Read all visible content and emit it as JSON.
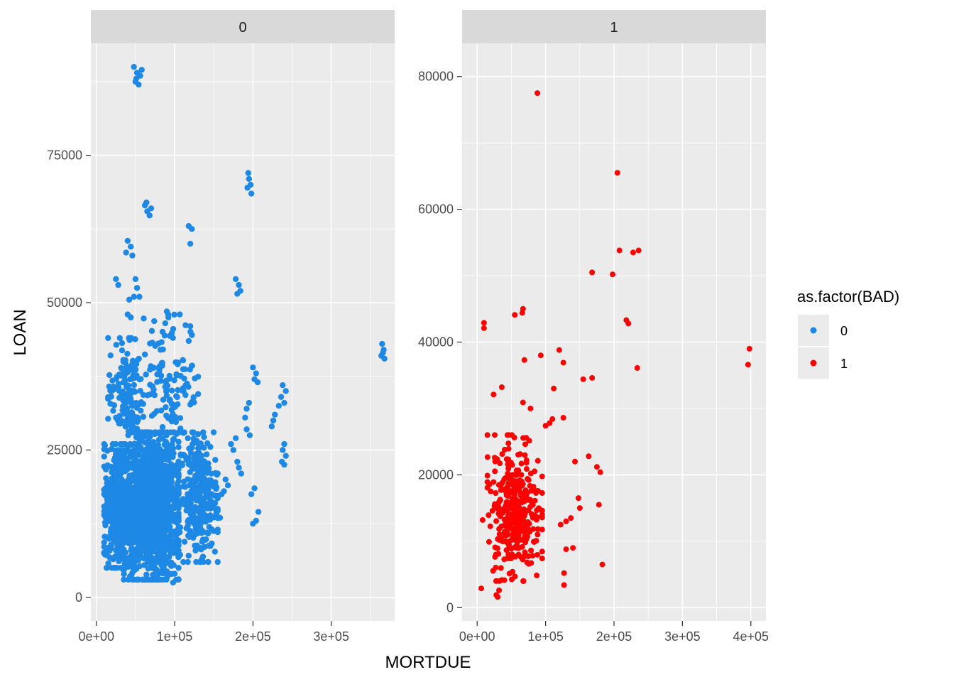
{
  "chart_data": {
    "type": "scatter",
    "xlabel": "MORTDUE",
    "ylabel": "LOAN",
    "grid": true,
    "legend": {
      "title": "as.factor(BAD)",
      "placement": "right",
      "entries": [
        {
          "label": "0",
          "color": "#1E88E5"
        },
        {
          "label": "1",
          "color": "#FF0000"
        }
      ]
    },
    "facets": [
      {
        "strip_label": "0",
        "color": "#1E88E5",
        "xlim": [
          -7000,
          381000
        ],
        "ylim": [
          -4000,
          94000
        ],
        "x_ticks": [
          0,
          100000,
          200000,
          300000
        ],
        "x_tick_labels": [
          "0e+00",
          "1e+05",
          "2e+05",
          "3e+05"
        ],
        "y_ticks": [
          0,
          25000,
          50000,
          75000
        ],
        "y_tick_labels": [
          "0",
          "25000",
          "50000",
          "75000"
        ],
        "clusters": [
          {
            "x": [
              35000,
              105000
            ],
            "y": [
              3000,
              28000
            ],
            "n": 1400
          },
          {
            "x": [
              10000,
              50000
            ],
            "y": [
              5000,
              26000
            ],
            "n": 500
          },
          {
            "x": [
              105000,
              155000
            ],
            "y": [
              6000,
              28000
            ],
            "n": 300
          },
          {
            "x": [
              15000,
              60000
            ],
            "y": [
              25000,
              44000
            ],
            "n": 150
          },
          {
            "x": [
              60000,
              130000
            ],
            "y": [
              26000,
              48000
            ],
            "n": 120
          }
        ],
        "points": [
          [
            48000,
            90000
          ],
          [
            52000,
            89000
          ],
          [
            56000,
            88500
          ],
          [
            50000,
            87500
          ],
          [
            54000,
            87000
          ],
          [
            58000,
            89500
          ],
          [
            51000,
            88000
          ],
          [
            195000,
            71000
          ],
          [
            197000,
            70000
          ],
          [
            193000,
            69500
          ],
          [
            198000,
            68500
          ],
          [
            194000,
            72000
          ],
          [
            62000,
            66500
          ],
          [
            65000,
            65500
          ],
          [
            68000,
            64800
          ],
          [
            64000,
            67000
          ],
          [
            70000,
            66000
          ],
          [
            118000,
            63000
          ],
          [
            122000,
            62500
          ],
          [
            120000,
            60000
          ],
          [
            40000,
            60500
          ],
          [
            44000,
            59500
          ],
          [
            38000,
            58500
          ],
          [
            46000,
            58000
          ],
          [
            25000,
            54000
          ],
          [
            28000,
            53000
          ],
          [
            50000,
            54000
          ],
          [
            52000,
            52500
          ],
          [
            42000,
            50500
          ],
          [
            48000,
            51000
          ],
          [
            55000,
            51000
          ],
          [
            40000,
            48000
          ],
          [
            44000,
            47500
          ],
          [
            178000,
            54000
          ],
          [
            182000,
            53000
          ],
          [
            180000,
            51500
          ],
          [
            184000,
            52000
          ],
          [
            90000,
            48500
          ],
          [
            92000,
            47500
          ],
          [
            88000,
            46500
          ],
          [
            120000,
            46000
          ],
          [
            122000,
            44500
          ],
          [
            118000,
            43500
          ],
          [
            365000,
            43000
          ],
          [
            367000,
            42000
          ],
          [
            364000,
            41000
          ],
          [
            368000,
            40500
          ],
          [
            366000,
            41500
          ],
          [
            200000,
            39000
          ],
          [
            204000,
            38000
          ],
          [
            202000,
            37000
          ],
          [
            206000,
            36500
          ],
          [
            238000,
            36000
          ],
          [
            242000,
            35000
          ],
          [
            236000,
            34000
          ],
          [
            240000,
            33000
          ],
          [
            233000,
            32500
          ],
          [
            228000,
            31000
          ],
          [
            226000,
            30000
          ],
          [
            224000,
            29000
          ],
          [
            195000,
            33000
          ],
          [
            192000,
            32000
          ],
          [
            190000,
            30500
          ],
          [
            172000,
            26000
          ],
          [
            175000,
            25000
          ],
          [
            178000,
            27000
          ],
          [
            192000,
            28500
          ],
          [
            196000,
            27500
          ],
          [
            240000,
            26000
          ],
          [
            238000,
            25000
          ],
          [
            242000,
            24000
          ],
          [
            237000,
            23000
          ],
          [
            240000,
            22500
          ],
          [
            180000,
            23000
          ],
          [
            182000,
            22000
          ],
          [
            185000,
            21000
          ],
          [
            165000,
            20000
          ],
          [
            168000,
            19000
          ],
          [
            163000,
            18000
          ],
          [
            160000,
            17500
          ],
          [
            198000,
            17500
          ],
          [
            202000,
            18500
          ],
          [
            155000,
            15000
          ],
          [
            158000,
            13500
          ],
          [
            200000,
            12500
          ],
          [
            204000,
            13000
          ],
          [
            207000,
            14500
          ],
          [
            75000,
            3500
          ],
          [
            98000,
            2500
          ],
          [
            100000,
            4000
          ],
          [
            102000,
            3000
          ]
        ]
      },
      {
        "strip_label": "1",
        "color": "#FF0000",
        "xlim": [
          -22000,
          422000
        ],
        "ylim": [
          -2000,
          85000
        ],
        "x_ticks": [
          0,
          100000,
          200000,
          300000,
          400000
        ],
        "x_tick_labels": [
          "0e+00",
          "1e+05",
          "2e+05",
          "3e+05",
          "4e+05"
        ],
        "y_ticks": [
          0,
          20000,
          40000,
          60000,
          80000
        ],
        "y_tick_labels": [
          "0",
          "20000",
          "40000",
          "60000",
          "80000"
        ],
        "clusters": [
          {
            "x": [
              15000,
              95000
            ],
            "y": [
              4000,
              26000
            ],
            "n": 260
          },
          {
            "x": [
              40000,
              75000
            ],
            "y": [
              8000,
              20000
            ],
            "n": 120
          }
        ],
        "points": [
          [
            88000,
            77500
          ],
          [
            205000,
            65500
          ],
          [
            208000,
            53800
          ],
          [
            228000,
            53500
          ],
          [
            236000,
            53800
          ],
          [
            168000,
            50500
          ],
          [
            198000,
            50200
          ],
          [
            218000,
            43300
          ],
          [
            221000,
            42800
          ],
          [
            10000,
            42900
          ],
          [
            10000,
            42100
          ],
          [
            67000,
            45000
          ],
          [
            66000,
            44400
          ],
          [
            55000,
            44100
          ],
          [
            398000,
            39000
          ],
          [
            396000,
            36600
          ],
          [
            234000,
            36100
          ],
          [
            120000,
            38800
          ],
          [
            93000,
            38000
          ],
          [
            69000,
            37300
          ],
          [
            126000,
            36900
          ],
          [
            168000,
            34600
          ],
          [
            155000,
            34400
          ],
          [
            112000,
            33000
          ],
          [
            36000,
            33200
          ],
          [
            24000,
            32100
          ],
          [
            67000,
            30900
          ],
          [
            78000,
            30000
          ],
          [
            126000,
            28600
          ],
          [
            110000,
            28400
          ],
          [
            106000,
            27800
          ],
          [
            100000,
            27400
          ],
          [
            175000,
            21200
          ],
          [
            180000,
            20400
          ],
          [
            163000,
            22800
          ],
          [
            143000,
            22000
          ],
          [
            148000,
            16500
          ],
          [
            150000,
            15000
          ],
          [
            178000,
            15500
          ],
          [
            137000,
            13500
          ],
          [
            130000,
            13000
          ],
          [
            122000,
            12500
          ],
          [
            140000,
            9000
          ],
          [
            130000,
            8800
          ],
          [
            183000,
            6500
          ],
          [
            127000,
            5200
          ],
          [
            127000,
            3400
          ],
          [
            8000,
            13200
          ],
          [
            6000,
            2900
          ],
          [
            28000,
            1900
          ],
          [
            32000,
            2600
          ],
          [
            30000,
            1600
          ]
        ]
      }
    ]
  }
}
